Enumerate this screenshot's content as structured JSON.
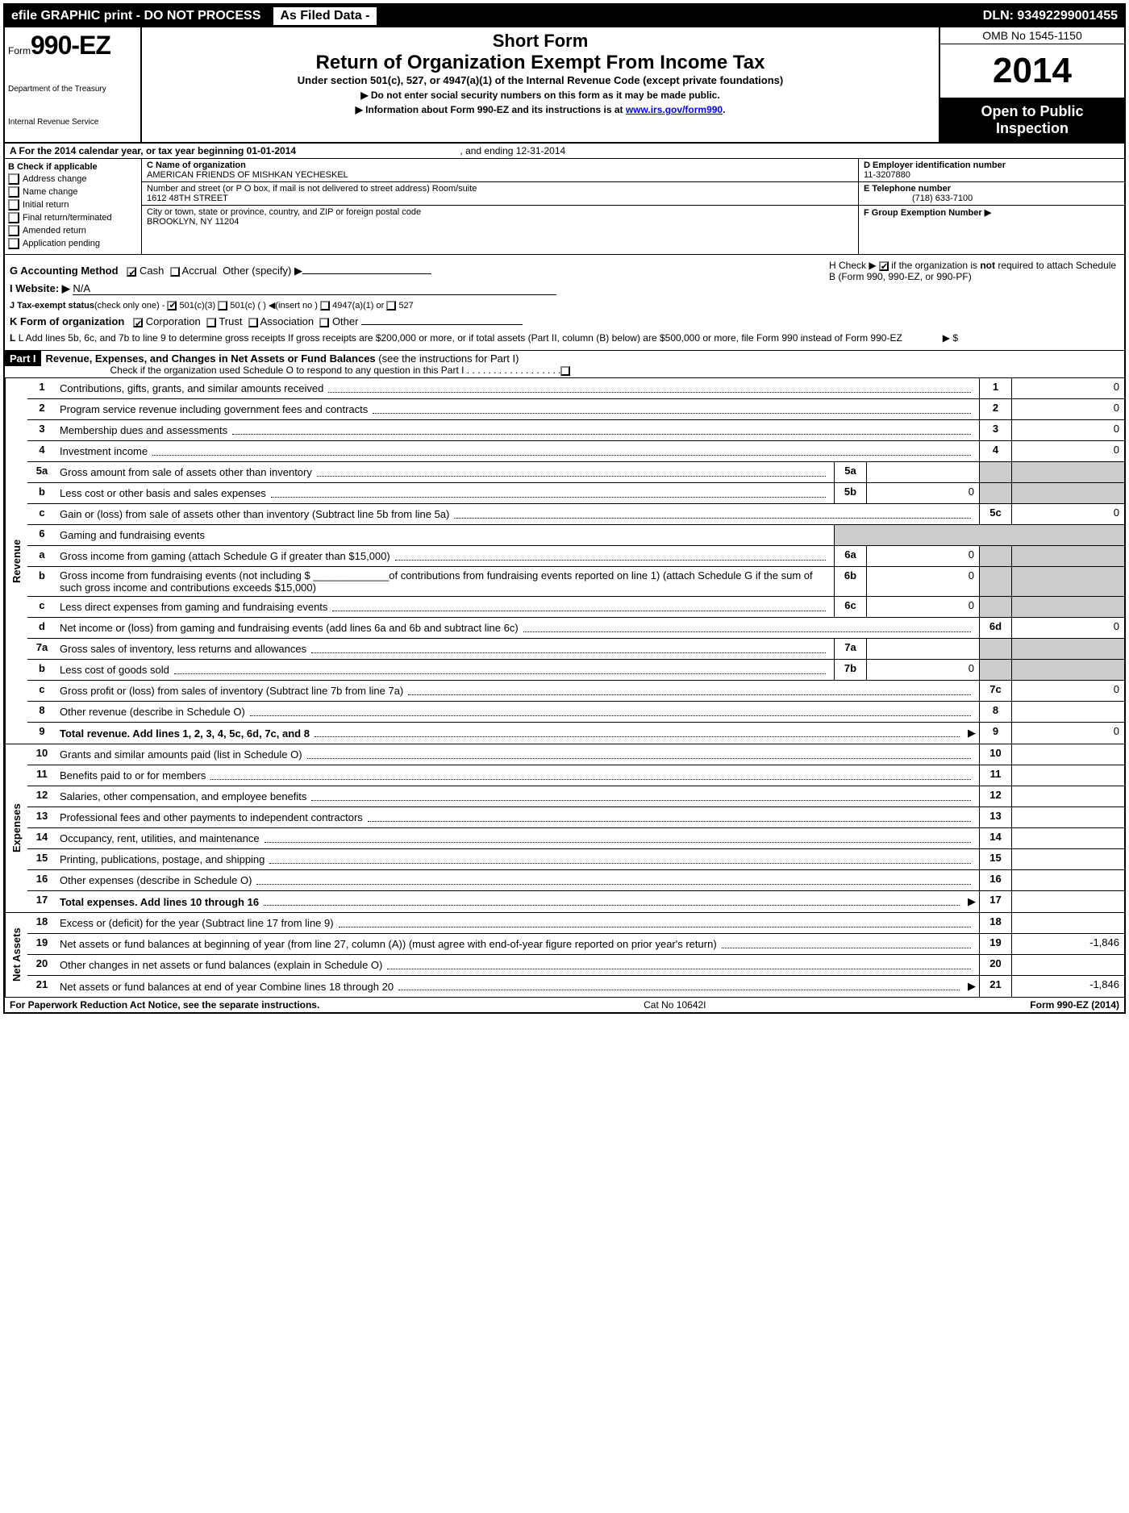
{
  "topbar": {
    "efile": "efile GRAPHIC print - DO NOT PROCESS",
    "asfiled": "As Filed Data -",
    "dln": "DLN: 93492299001455"
  },
  "header": {
    "form_prefix": "Form",
    "form_num": "990-EZ",
    "dept1": "Department of the Treasury",
    "dept2": "Internal Revenue Service",
    "short_form": "Short Form",
    "return_title": "Return of Organization Exempt From Income Tax",
    "subtitle": "Under section 501(c), 527, or 4947(a)(1) of the Internal Revenue Code (except private foundations)",
    "notice1": "▶ Do not enter social security numbers on this form as it may be made public.",
    "notice2_pre": "▶ Information about Form 990-EZ and its instructions is at ",
    "notice2_link": "www.irs.gov/form990",
    "notice2_post": ".",
    "omb": "OMB No 1545-1150",
    "year": "2014",
    "open1": "Open to Public",
    "open2": "Inspection"
  },
  "rowA": {
    "label": "A  For the 2014 calendar year, or tax year beginning 01-01-2014",
    "end": ", and ending 12-31-2014"
  },
  "colB": {
    "header": "B  Check if applicable",
    "items": [
      "Address change",
      "Name change",
      "Initial return",
      "Final return/terminated",
      "Amended return",
      "Application pending"
    ]
  },
  "colC": {
    "name_label": "C Name of organization",
    "name": "AMERICAN FRIENDS OF MISHKAN YECHESKEL",
    "street_label": "Number and street (or P O box, if mail is not delivered to street address) Room/suite",
    "street": "1612 48TH STREET",
    "city_label": "City or town, state or province, country, and ZIP or foreign postal code",
    "city": "BROOKLYN, NY  11204"
  },
  "colDEF": {
    "d_label": "D Employer identification number",
    "d_val": "11-3207880",
    "e_label": "E Telephone number",
    "e_val": "(718) 633-7100",
    "f_label": "F Group Exemption Number  ▶"
  },
  "ghijkl": {
    "g": "G Accounting Method",
    "g_cash": "Cash",
    "g_accrual": "Accrual",
    "g_other": "Other (specify) ▶",
    "h1": "H  Check ▶",
    "h2": "if the organization is ",
    "h_not": "not",
    "h3": " required to attach Schedule B (Form 990, 990-EZ, or 990-PF)",
    "i": "I Website: ▶",
    "i_val": "N/A",
    "j": "J Tax-exempt status",
    "j_sub": "(check only one) -",
    "j1": "501(c)(3)",
    "j2": "501(c) (   ) ◀(insert no )",
    "j3": "4947(a)(1) or",
    "j4": "527",
    "k": "K Form of organization",
    "k1": "Corporation",
    "k2": "Trust",
    "k3": "Association",
    "k4": "Other",
    "l": "L Add lines 5b, 6c, and 7b to line 9 to determine gross receipts  If gross receipts are $200,000 or more, or if total assets (Part II, column (B) below) are $500,000 or more, file Form 990 instead of Form 990-EZ",
    "l_arrow": "▶ $"
  },
  "part1": {
    "label": "Part I",
    "title": "Revenue, Expenses, and Changes in Net Assets or Fund Balances",
    "title_suffix": " (see the instructions for Part I)",
    "sub": "Check if the organization used Schedule O to respond to any question in this Part I  .  .  .  .  .  .  .  .  .  .  .  .  .  .  .  .  .  ."
  },
  "side_labels": {
    "revenue": "Revenue",
    "expenses": "Expenses",
    "netassets": "Net Assets"
  },
  "lines": {
    "l1": {
      "n": "1",
      "d": "Contributions, gifts, grants, and similar amounts received",
      "v": "0"
    },
    "l2": {
      "n": "2",
      "d": "Program service revenue including government fees and contracts",
      "v": "0"
    },
    "l3": {
      "n": "3",
      "d": "Membership dues and assessments",
      "v": "0"
    },
    "l4": {
      "n": "4",
      "d": "Investment income",
      "v": "0"
    },
    "l5a": {
      "n": "5a",
      "d": "Gross amount from sale of assets other than inventory",
      "mb": "5a",
      "mv": ""
    },
    "l5b": {
      "n": "b",
      "d": "Less  cost or other basis and sales expenses",
      "mb": "5b",
      "mv": "0"
    },
    "l5c": {
      "n": "c",
      "d": "Gain or (loss) from sale of assets other than inventory (Subtract line 5b from line 5a)",
      "rn": "5c",
      "v": "0"
    },
    "l6": {
      "n": "6",
      "d": "Gaming and fundraising events"
    },
    "l6a": {
      "n": "a",
      "d": "Gross income from gaming (attach Schedule G if greater than $15,000)",
      "mb": "6a",
      "mv": "0"
    },
    "l6b": {
      "n": "b",
      "d": "Gross income from fundraising events (not including $ _____________of contributions from fundraising events reported on line 1) (attach Schedule G if the sum of such gross income and contributions exceeds $15,000)",
      "mb": "6b",
      "mv": "0"
    },
    "l6c": {
      "n": "c",
      "d": "Less  direct expenses from gaming and fundraising events",
      "mb": "6c",
      "mv": "0"
    },
    "l6d": {
      "n": "d",
      "d": "Net income or (loss) from gaming and fundraising events (add lines 6a and 6b and subtract line 6c)",
      "rn": "6d",
      "v": "0"
    },
    "l7a": {
      "n": "7a",
      "d": "Gross sales of inventory, less returns and allowances",
      "mb": "7a",
      "mv": ""
    },
    "l7b": {
      "n": "b",
      "d": "Less  cost of goods sold",
      "mb": "7b",
      "mv": "0"
    },
    "l7c": {
      "n": "c",
      "d": "Gross profit or (loss) from sales of inventory (Subtract line 7b from line 7a)",
      "rn": "7c",
      "v": "0"
    },
    "l8": {
      "n": "8",
      "d": "Other revenue (describe in Schedule O)",
      "rn": "8",
      "v": ""
    },
    "l9": {
      "n": "9",
      "d": "Total revenue. Add lines 1, 2, 3, 4, 5c, 6d, 7c, and 8",
      "rn": "9",
      "v": "0",
      "bold": true,
      "arrow": true
    },
    "l10": {
      "n": "10",
      "d": "Grants and similar amounts paid (list in Schedule O)",
      "rn": "10",
      "v": ""
    },
    "l11": {
      "n": "11",
      "d": "Benefits paid to or for members",
      "rn": "11",
      "v": ""
    },
    "l12": {
      "n": "12",
      "d": "Salaries, other compensation, and employee benefits",
      "rn": "12",
      "v": ""
    },
    "l13": {
      "n": "13",
      "d": "Professional fees and other payments to independent contractors",
      "rn": "13",
      "v": ""
    },
    "l14": {
      "n": "14",
      "d": "Occupancy, rent, utilities, and maintenance",
      "rn": "14",
      "v": ""
    },
    "l15": {
      "n": "15",
      "d": "Printing, publications, postage, and shipping",
      "rn": "15",
      "v": ""
    },
    "l16": {
      "n": "16",
      "d": "Other expenses (describe in Schedule O)",
      "rn": "16",
      "v": ""
    },
    "l17": {
      "n": "17",
      "d": "Total expenses. Add lines 10 through 16",
      "rn": "17",
      "v": "",
      "bold": true,
      "arrow": true
    },
    "l18": {
      "n": "18",
      "d": "Excess or (deficit) for the year (Subtract line 17 from line 9)",
      "rn": "18",
      "v": ""
    },
    "l19": {
      "n": "19",
      "d": "Net assets or fund balances at beginning of year (from line 27, column (A)) (must agree with end-of-year figure reported on prior year's return)",
      "rn": "19",
      "v": "-1,846"
    },
    "l20": {
      "n": "20",
      "d": "Other changes in net assets or fund balances (explain in Schedule O)",
      "rn": "20",
      "v": ""
    },
    "l21": {
      "n": "21",
      "d": "Net assets or fund balances at end of year Combine lines 18 through 20",
      "rn": "21",
      "v": "-1,846",
      "arrow": true
    }
  },
  "footer": {
    "left": "For Paperwork Reduction Act Notice, see the separate instructions.",
    "mid": "Cat No 10642I",
    "right": "Form 990-EZ (2014)"
  }
}
